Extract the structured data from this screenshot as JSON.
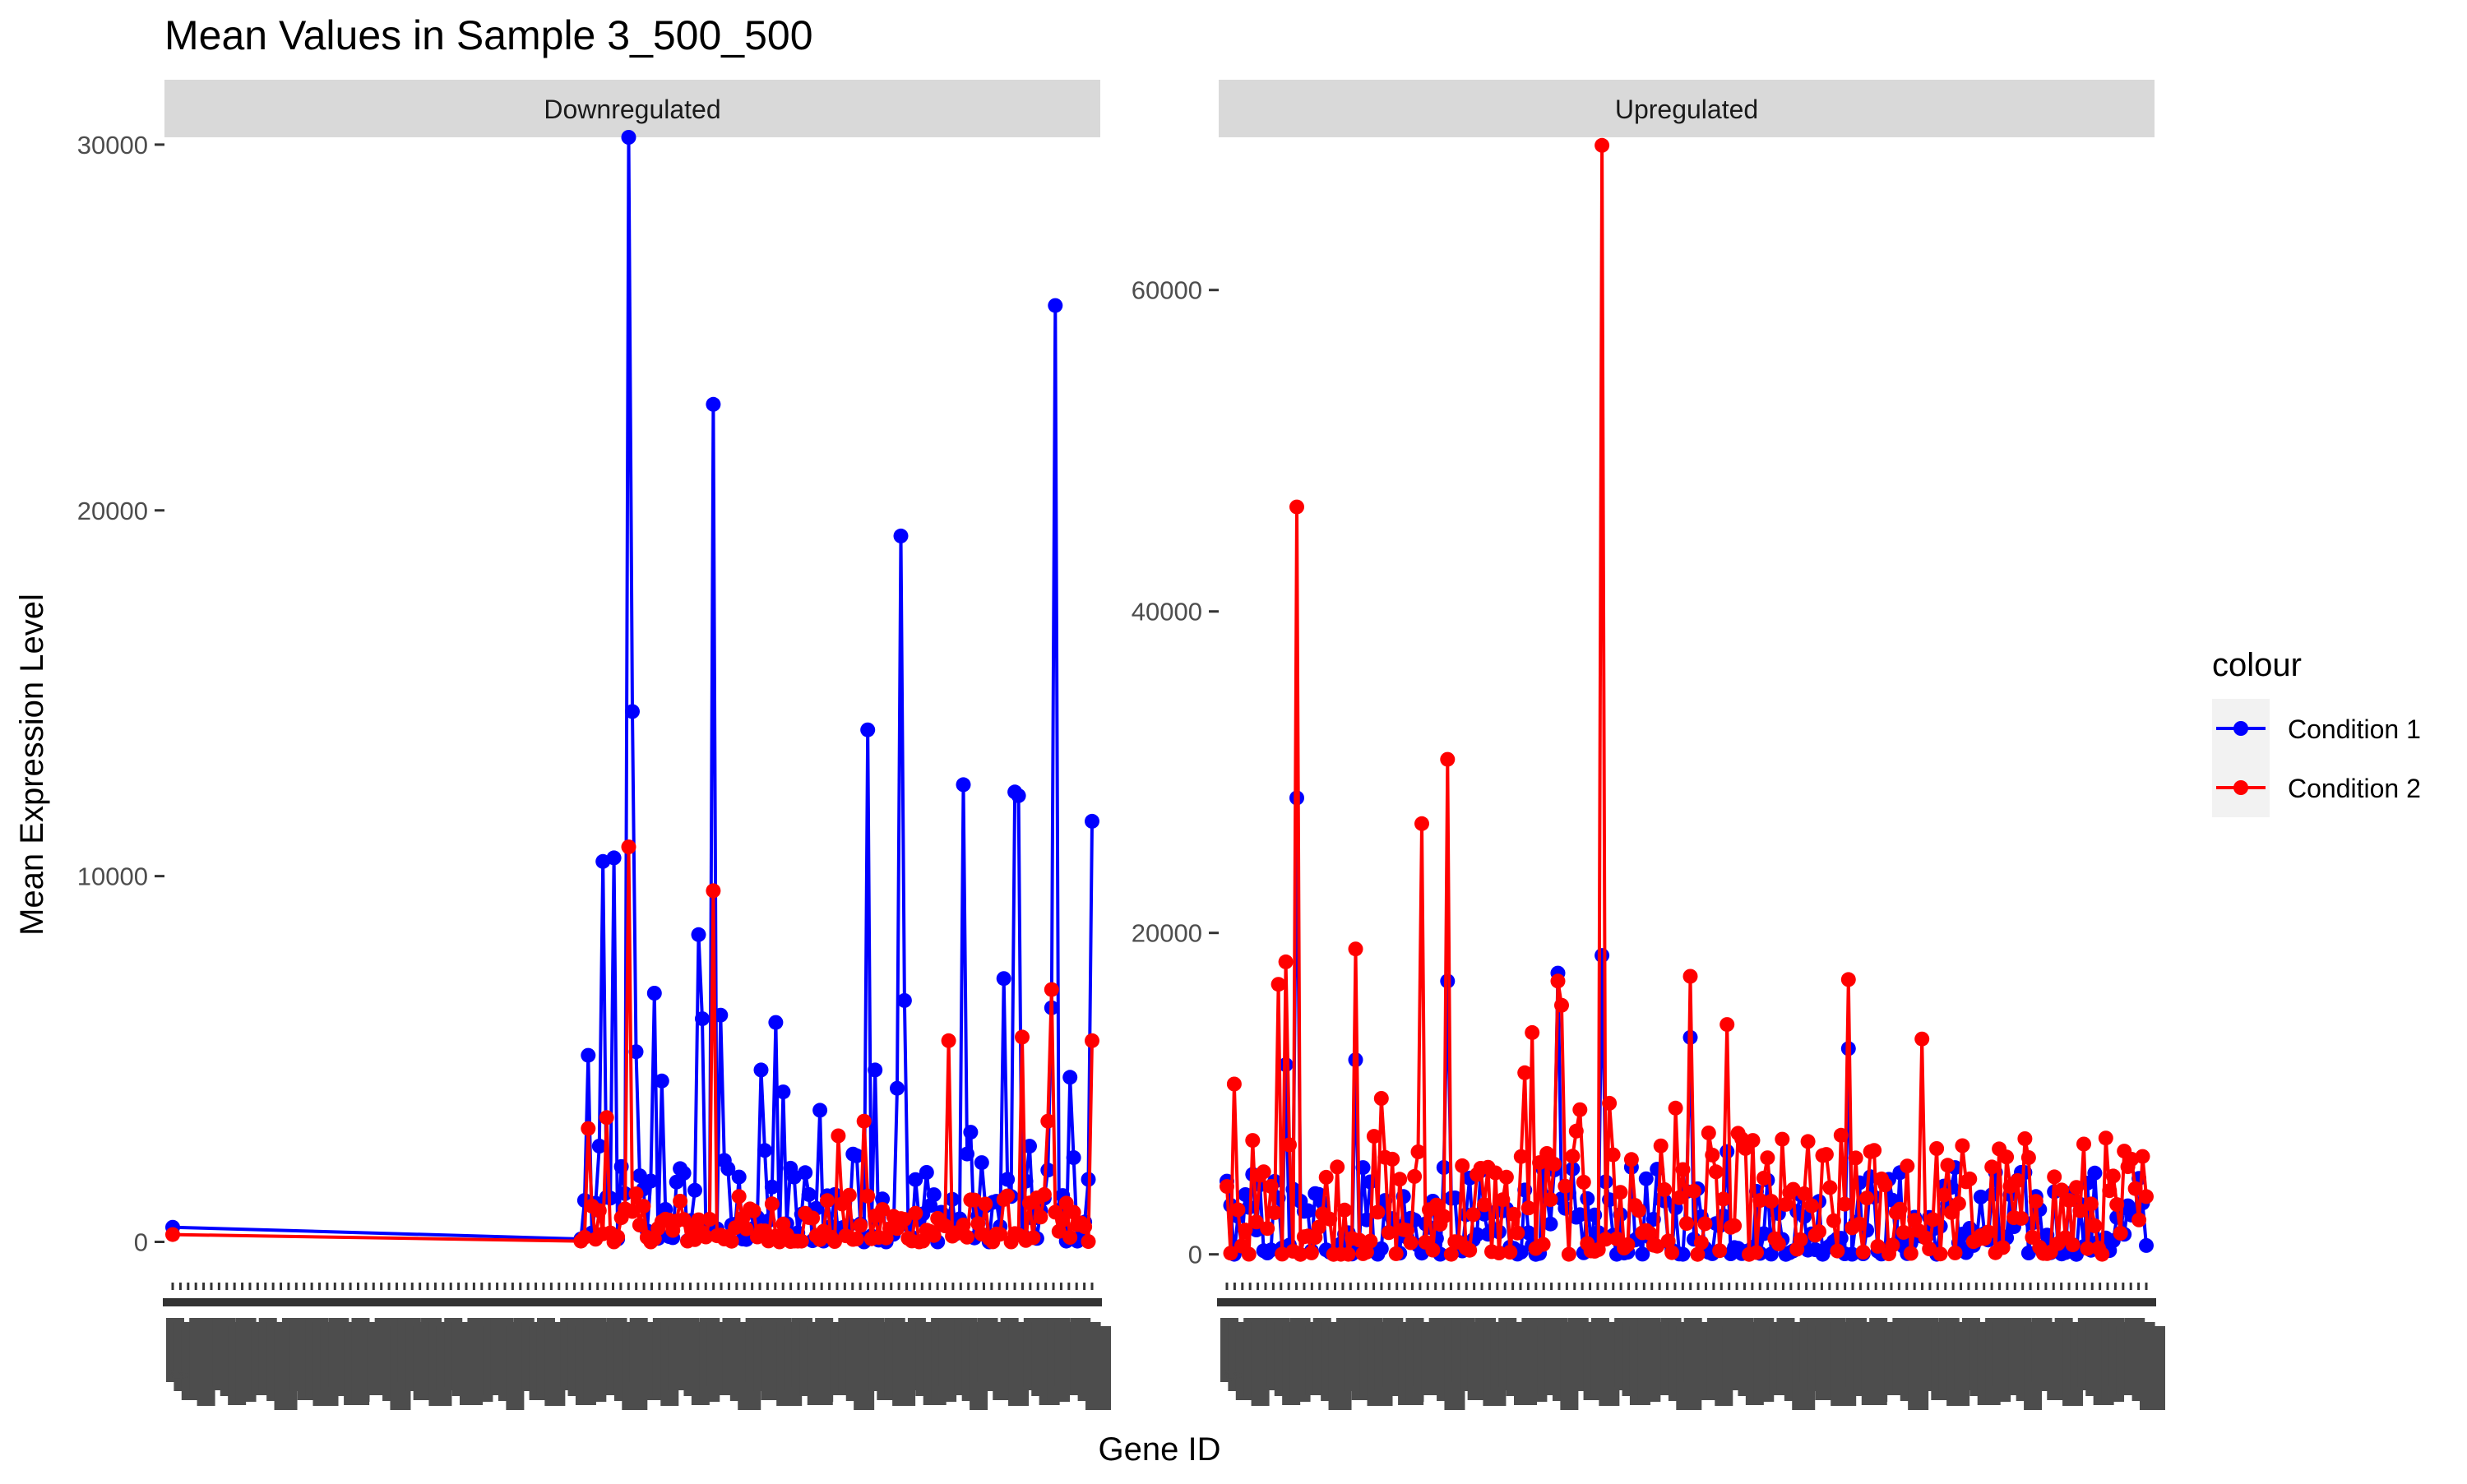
{
  "chart_data": {
    "type": "line",
    "title": "Mean Values in Sample 3_500_500",
    "xlabel": "Gene ID",
    "ylabel": "Mean Expression Level",
    "legend": {
      "title": "colour",
      "placement": "right",
      "entries": [
        {
          "name": "Condition 1",
          "color": "#0000ff"
        },
        {
          "name": "Condition 2",
          "color": "#ff0000"
        }
      ]
    },
    "x_tick_first_label": "g",
    "panels": [
      {
        "label": "Downregulated",
        "ylim": [
          -1000,
          30200
        ],
        "yticks": [
          0,
          10000,
          20000,
          30000
        ],
        "ytick_labels": [
          "0",
          "10000",
          "20000",
          "30000"
        ],
        "n_genes": 250,
        "series": [
          {
            "name": "Condition 1",
            "points": [
              [
                0,
                400
              ],
              [
                111,
                80
              ],
              [
                124,
                30200
              ],
              [
                125,
                14500
              ],
              [
                147,
                22900
              ],
              [
                189,
                14000
              ],
              [
                198,
                19300
              ],
              [
                215,
                12500
              ],
              [
                229,
                12300
              ],
              [
                230,
                12200
              ],
              [
                240,
                25600
              ],
              [
                239,
                6400
              ],
              [
                250,
                11500
              ],
              [
                117,
                10400
              ],
              [
                120,
                10500
              ],
              [
                126,
                5200
              ],
              [
                113,
                5100
              ],
              [
                131,
                6800
              ],
              [
                143,
                8400
              ],
              [
                144,
                6100
              ],
              [
                149,
                6200
              ],
              [
                199,
                6600
              ],
              [
                164,
                6000
              ],
              [
                185,
                2400
              ],
              [
                191,
                4700
              ],
              [
                226,
                7200
              ],
              [
                244,
                4500
              ],
              [
                133,
                4400
              ],
              [
                160,
                4700
              ],
              [
                166,
                4100
              ],
              [
                197,
                4200
              ],
              [
                217,
                3000
              ],
              [
                176,
                3600
              ]
            ],
            "baseline": 1200
          },
          {
            "name": "Condition 2",
            "points": [
              [
                0,
                200
              ],
              [
                111,
                20
              ],
              [
                124,
                10800
              ],
              [
                147,
                9600
              ],
              [
                113,
                3100
              ],
              [
                188,
                3300
              ],
              [
                211,
                5500
              ],
              [
                231,
                5600
              ],
              [
                239,
                6900
              ],
              [
                250,
                5500
              ],
              [
                238,
                3300
              ],
              [
                181,
                2900
              ],
              [
                118,
                3400
              ]
            ],
            "baseline": 600
          }
        ]
      },
      {
        "label": "Upregulated",
        "ylim": [
          -1500,
          69500
        ],
        "yticks": [
          0,
          20000,
          40000,
          60000
        ],
        "ytick_labels": [
          "0",
          "20000",
          "40000",
          "60000"
        ],
        "n_genes": 250,
        "series": [
          {
            "name": "Condition 1",
            "points": [
              [
                19,
                28400
              ],
              [
                16,
                11800
              ],
              [
                35,
                12100
              ],
              [
                37,
                5400
              ],
              [
                60,
                17000
              ],
              [
                90,
                17500
              ],
              [
                102,
                18600
              ],
              [
                104,
                3400
              ],
              [
                126,
                13500
              ],
              [
                136,
                6400
              ],
              [
                169,
                12800
              ],
              [
                171,
                2000
              ],
              [
                198,
                5400
              ],
              [
                220,
                3600
              ],
              [
                242,
                2300
              ]
            ],
            "baseline": 2500
          },
          {
            "name": "Condition 2",
            "points": [
              [
                2,
                10600
              ],
              [
                14,
                16800
              ],
              [
                16,
                18200
              ],
              [
                19,
                46500
              ],
              [
                35,
                19000
              ],
              [
                53,
                26800
              ],
              [
                60,
                30800
              ],
              [
                90,
                17000
              ],
              [
                91,
                15500
              ],
              [
                102,
                69000
              ],
              [
                104,
                9400
              ],
              [
                110,
                5900
              ],
              [
                126,
                17300
              ],
              [
                136,
                14300
              ],
              [
                169,
                17100
              ],
              [
                171,
                6000
              ],
              [
                189,
                13400
              ],
              [
                42,
                9700
              ],
              [
                81,
                11300
              ],
              [
                83,
                13800
              ],
              [
                122,
                9100
              ],
              [
                96,
                9000
              ],
              [
                185,
                5500
              ],
              [
                197,
                2600
              ],
              [
                220,
                3300
              ],
              [
                242,
                3100
              ]
            ],
            "baseline": 3500
          }
        ]
      }
    ]
  }
}
